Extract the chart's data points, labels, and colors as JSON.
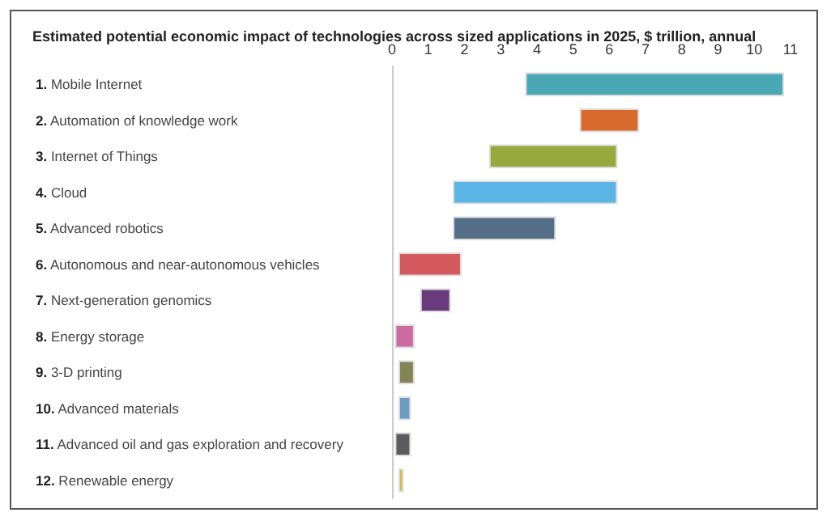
{
  "chart_data": {
    "type": "bar",
    "orientation": "horizontal",
    "title": "Estimated potential economic impact of technologies across sized applications in 2025, $ trillion, annual",
    "categories": [
      "1. Mobile Internet",
      "2. Automation of knowledge work",
      "3. Internet of Things",
      "4. Cloud",
      "5. Advanced robotics",
      "6. Autonomous and near-autonomous vehicles",
      "7. Next-generation genomics",
      "8. Energy storage",
      "9. 3-D printing",
      "10. Advanced materials",
      "11. Advanced oil and gas exploration and recovery",
      "12. Renewable energy"
    ],
    "base": [
      3.7,
      5.2,
      2.7,
      1.7,
      1.7,
      0.2,
      0.8,
      0.1,
      0.2,
      0.2,
      0.1,
      0.2
    ],
    "values": [
      7.1,
      1.6,
      3.5,
      4.5,
      2.8,
      1.7,
      0.8,
      0.5,
      0.4,
      0.3,
      0.4,
      0.1
    ],
    "colors": [
      "#4aa8b4",
      "#d76a2c",
      "#97a83c",
      "#5ab4e4",
      "#546e88",
      "#d45a5e",
      "#6a3a7c",
      "#cc6aa4",
      "#848454",
      "#6c9cc4",
      "#5c5c5e",
      "#d4bc4c"
    ],
    "xlim": [
      0,
      11
    ],
    "xticks": [
      0,
      1,
      2,
      3,
      4,
      5,
      6,
      7,
      8,
      9,
      10,
      11
    ],
    "grid": false
  }
}
